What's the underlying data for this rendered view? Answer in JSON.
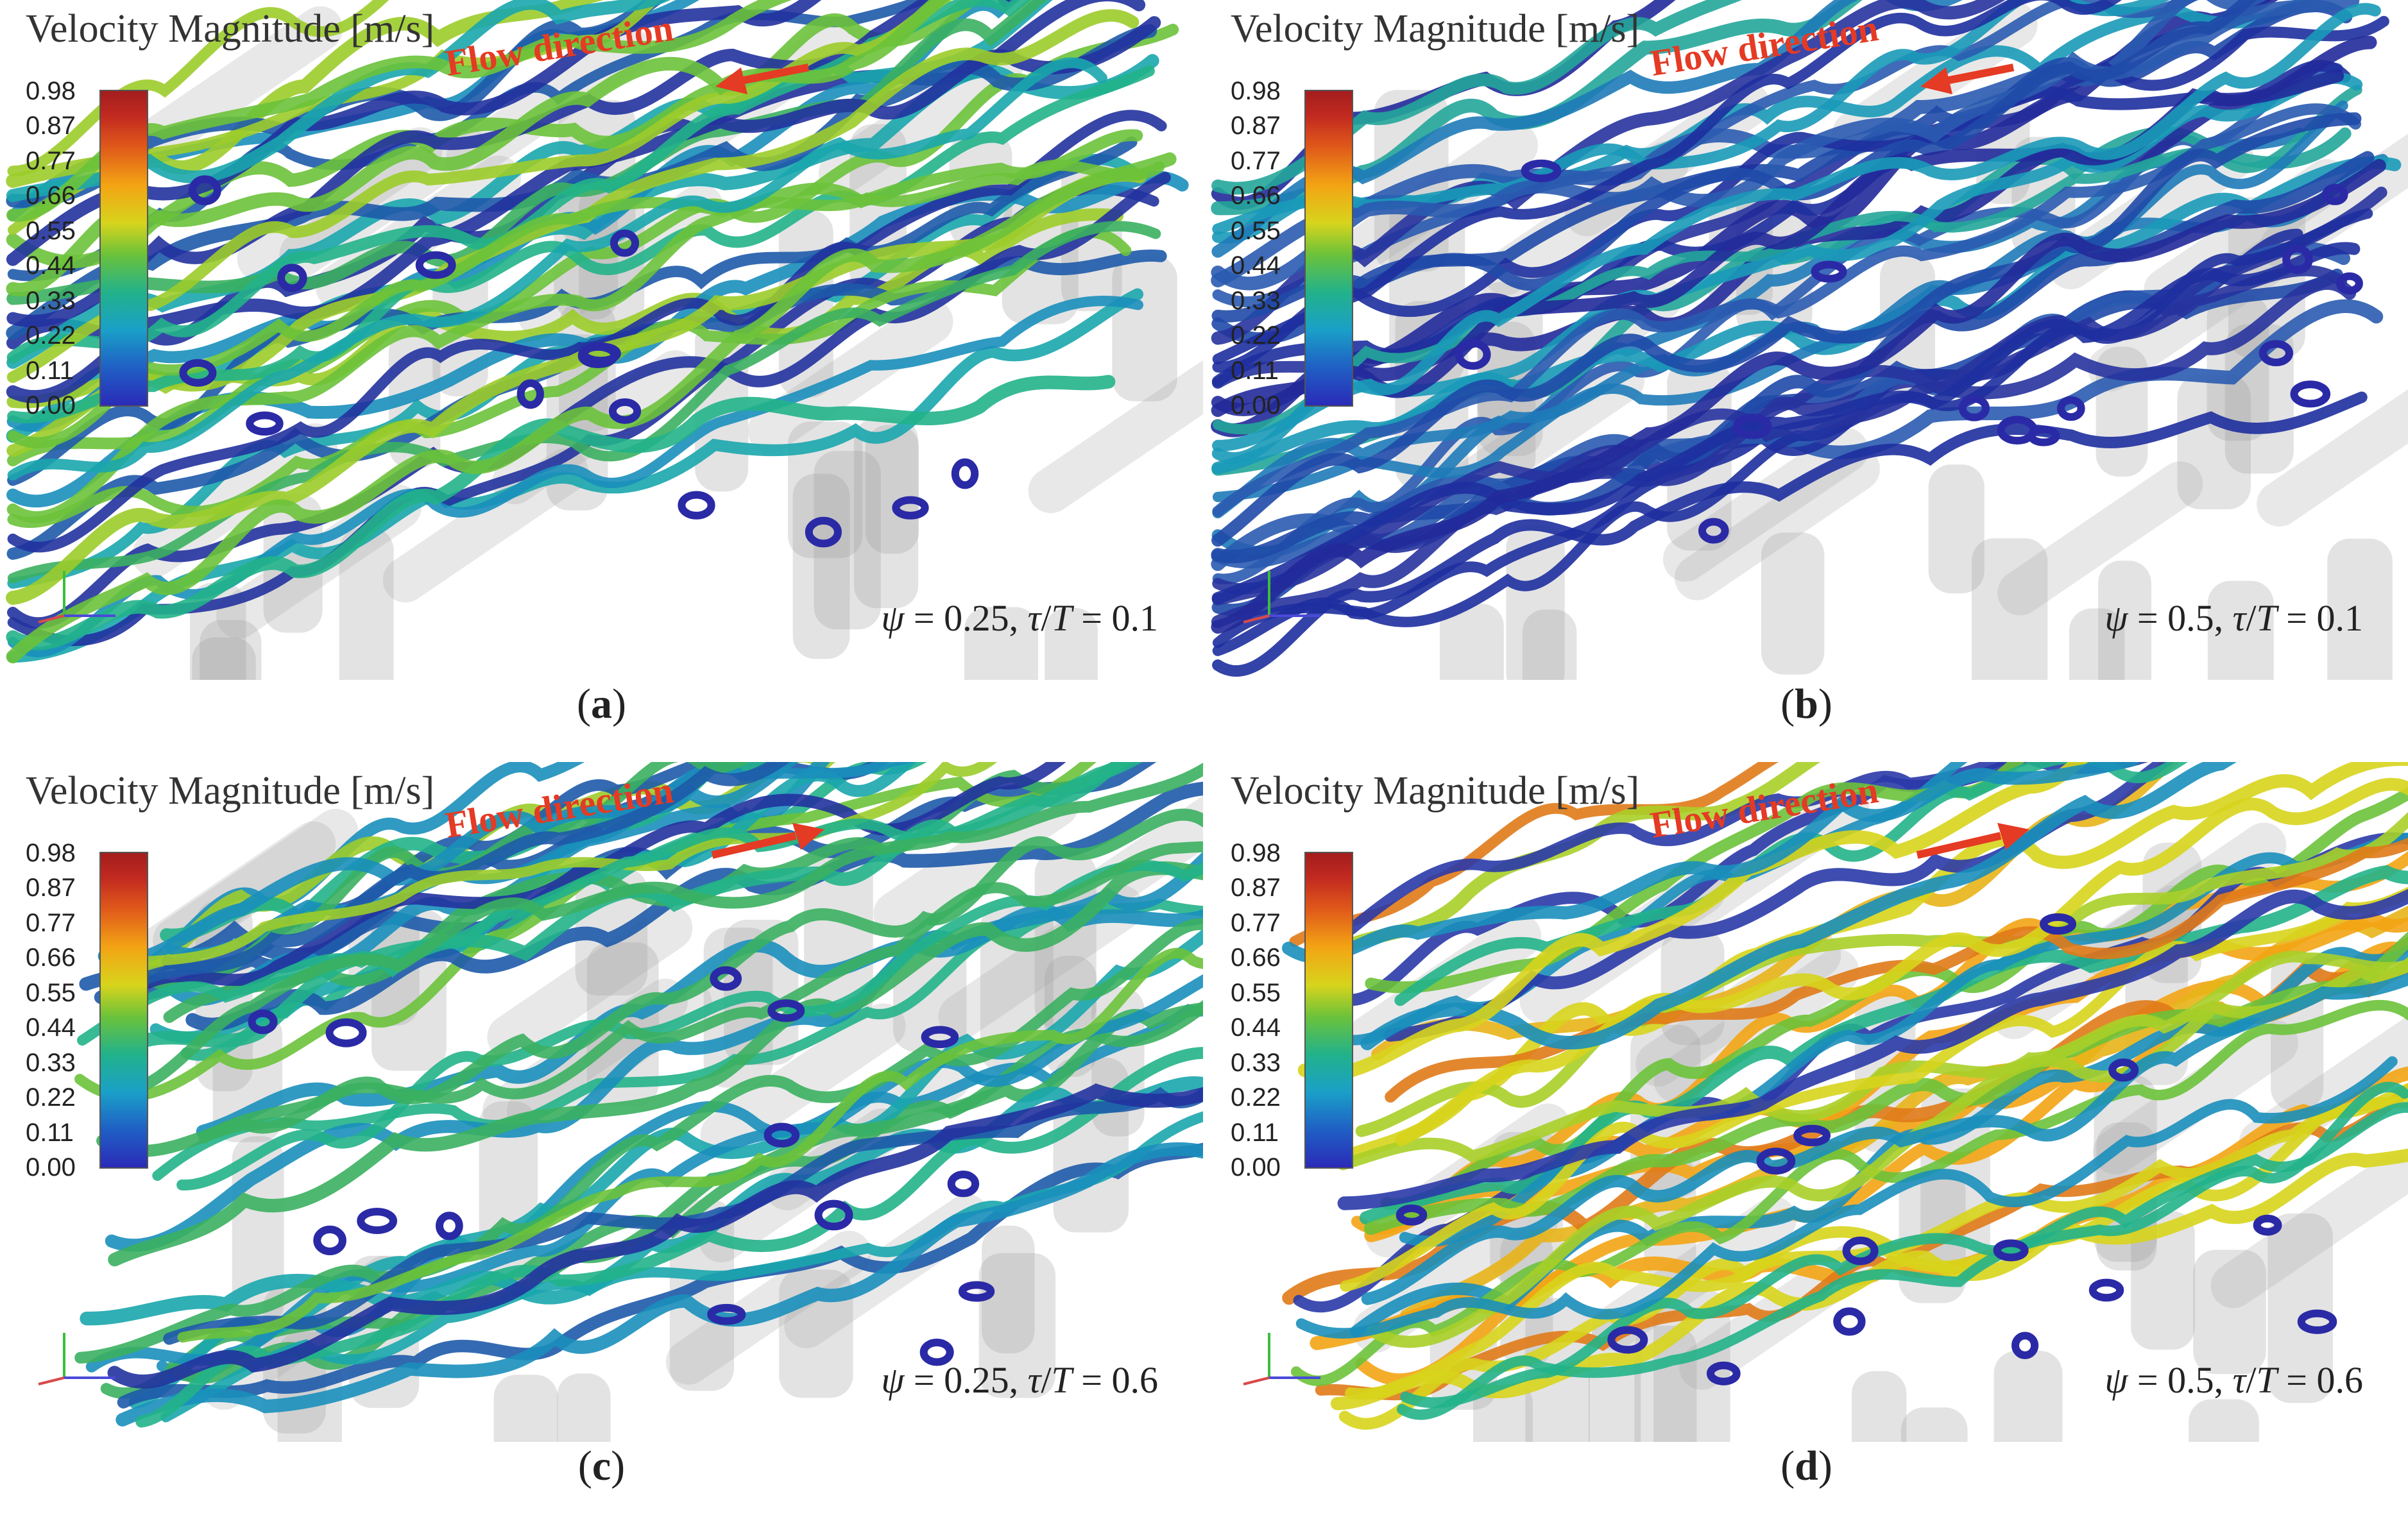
{
  "colorbar": {
    "title": "Velocity Magnitude [m/s]",
    "ticks": [
      "0.98",
      "0.87",
      "0.77",
      "0.66",
      "0.55",
      "0.44",
      "0.33",
      "0.22",
      "0.11",
      "0.00"
    ],
    "colors": [
      "#2b2bb8",
      "#1aa0c8",
      "#22b28a",
      "#6cc23a",
      "#d7d41c",
      "#f3a414",
      "#e05a1a",
      "#a31d1d"
    ]
  },
  "flow_label": "Flow direction",
  "panels": [
    {
      "id": "a",
      "psi": "0.25",
      "tau": "0.1",
      "flow": "left",
      "speed": "low-medium"
    },
    {
      "id": "b",
      "psi": "0.5",
      "tau": "0.1",
      "flow": "left",
      "speed": "low"
    },
    {
      "id": "c",
      "psi": "0.25",
      "tau": "0.6",
      "flow": "right",
      "speed": "low-medium"
    },
    {
      "id": "d",
      "psi": "0.5",
      "tau": "0.6",
      "flow": "right",
      "speed": "high"
    }
  ],
  "formula": {
    "psi_symbol": "ψ",
    "eq": " = ",
    "sep": ", ",
    "tau_symbol": "τ",
    "slash": "/",
    "T_symbol": "T"
  },
  "accent_color": "#e53a24"
}
